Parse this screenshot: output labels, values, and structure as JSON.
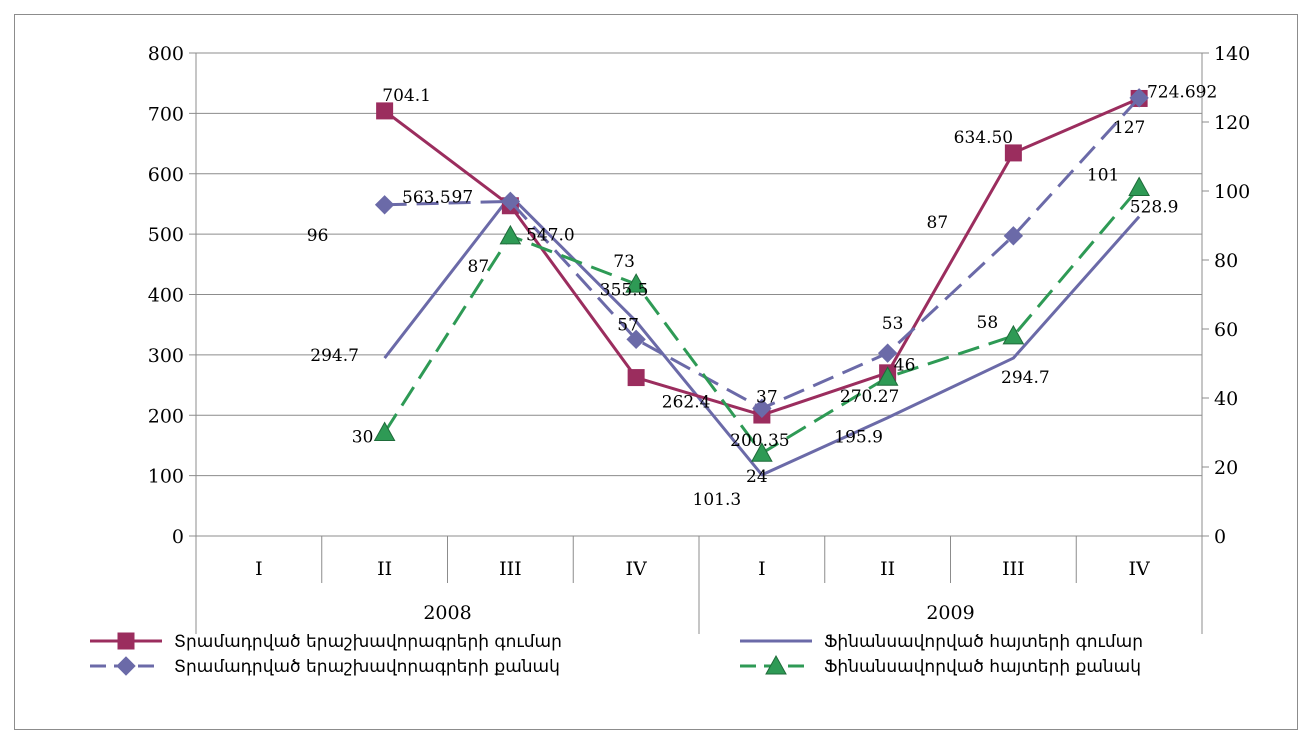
{
  "chart_data": {
    "type": "line",
    "categories": [
      "I",
      "II",
      "III",
      "IV",
      "I",
      "II",
      "III",
      "IV"
    ],
    "groups": [
      {
        "label": "2008",
        "span": 4
      },
      {
        "label": "2009",
        "span": 4
      }
    ],
    "y_left": {
      "min": 0,
      "max": 800,
      "step": 100,
      "ticks": [
        "0",
        "100",
        "200",
        "300",
        "400",
        "500",
        "600",
        "700",
        "800"
      ]
    },
    "y_right": {
      "min": 0,
      "max": 140,
      "step": 20,
      "ticks": [
        "0",
        "20",
        "40",
        "60",
        "80",
        "100",
        "120",
        "140"
      ]
    },
    "grid": "horizontal",
    "legend_position": "bottom",
    "series": [
      {
        "name": "Տրամադրված երաշխավորագրերի գումար",
        "axis": "left",
        "color": "#9b2d5e",
        "dash": "solid",
        "marker": "square",
        "values": [
          null,
          704.1,
          547.0,
          262.4,
          200.35,
          270.27,
          634.5,
          724.692
        ],
        "labels": [
          "",
          "704.1",
          "547.0",
          "262.4",
          "200.35",
          "270.27",
          "634.50",
          "724.692"
        ]
      },
      {
        "name": "Ֆինանսավորված հայտերի գումար",
        "axis": "left",
        "color": "#6b6aa8",
        "dash": "solid",
        "marker": "none",
        "values": [
          null,
          294.7,
          563.5,
          355.5,
          101.3,
          195.9,
          294.7,
          528.9
        ],
        "labels": [
          "",
          "294.7",
          "563.5",
          "355.5",
          "101.3",
          "195.9",
          "294.7",
          "528.9"
        ]
      },
      {
        "name": "Տրամադրված երաշխավորագրերի քանակ",
        "axis": "right",
        "color": "#6b6aa8",
        "dash": "dashed",
        "marker": "diamond",
        "values": [
          null,
          96,
          97,
          57,
          37,
          53,
          87,
          127
        ],
        "labels": [
          "",
          "96",
          "97",
          "57",
          "37",
          "53",
          "87",
          "127"
        ]
      },
      {
        "name": "Ֆինանսավորված հայտերի քանակ",
        "axis": "right",
        "color": "#2e9a55",
        "dash": "dashed",
        "marker": "triangle",
        "values": [
          null,
          30,
          87,
          73,
          24,
          46,
          58,
          101
        ],
        "labels": [
          "",
          "30",
          "87",
          "73",
          "24",
          "46",
          "58",
          "101"
        ]
      }
    ]
  }
}
